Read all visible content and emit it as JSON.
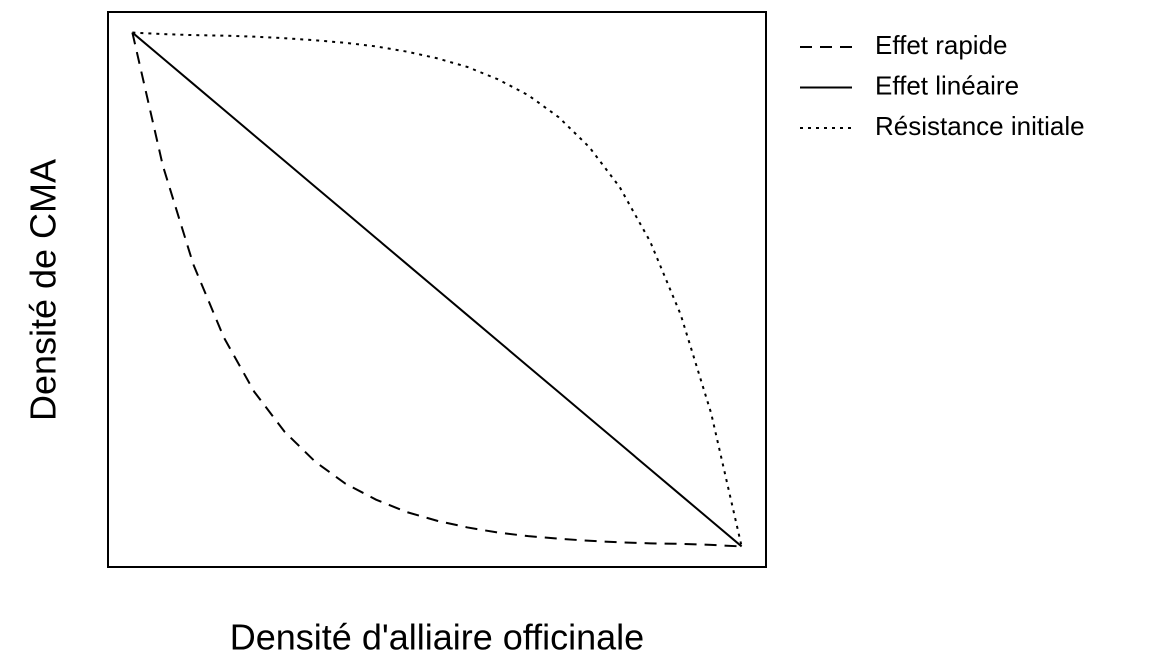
{
  "chart_data": {
    "type": "line",
    "x_label": "Densité d'alliaire officinale",
    "y_label": "Densité de CMA",
    "x": [
      0,
      0.05,
      0.1,
      0.15,
      0.2,
      0.25,
      0.3,
      0.35,
      0.4,
      0.45,
      0.5,
      0.55,
      0.6,
      0.65,
      0.7,
      0.75,
      0.8,
      0.85,
      0.9,
      0.95,
      1
    ],
    "xlim": [
      -0.04,
      1.04
    ],
    "ylim": [
      -0.04,
      1.04
    ],
    "legend": "outside-top-right",
    "series": [
      {
        "name": "Effet rapide",
        "color": "#000000",
        "dash": "dashed",
        "values": [
          1,
          0.741,
          0.549,
          0.407,
          0.301,
          0.223,
          0.165,
          0.122,
          0.091,
          0.067,
          0.05,
          0.037,
          0.027,
          0.02,
          0.015,
          0.011,
          0.008,
          0.006,
          0.005,
          0.003,
          0
        ]
      },
      {
        "name": "Effet linéaire",
        "color": "#000000",
        "dash": "solid",
        "values": [
          1,
          0.95,
          0.9,
          0.85,
          0.8,
          0.75,
          0.7,
          0.65,
          0.6,
          0.55,
          0.5,
          0.45,
          0.4,
          0.35,
          0.3,
          0.25,
          0.2,
          0.15,
          0.1,
          0.05,
          0
        ]
      },
      {
        "name": "Résistance initiale",
        "color": "#000000",
        "dash": "dotted",
        "values": [
          1,
          0.997,
          0.995,
          0.994,
          0.992,
          0.989,
          0.985,
          0.98,
          0.973,
          0.963,
          0.95,
          0.933,
          0.909,
          0.878,
          0.835,
          0.777,
          0.699,
          0.593,
          0.451,
          0.259,
          0
        ]
      }
    ]
  }
}
